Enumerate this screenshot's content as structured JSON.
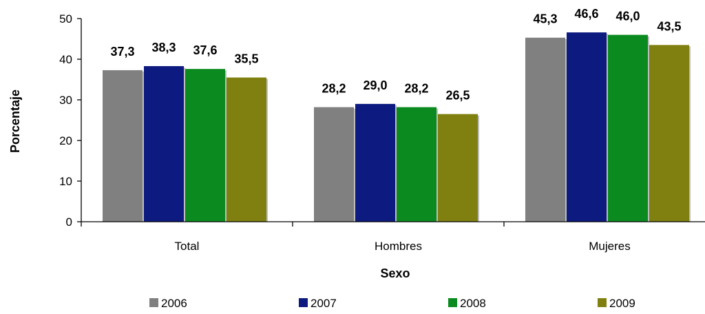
{
  "chart_data": {
    "type": "bar",
    "title": "",
    "xlabel": "Sexo",
    "ylabel": "Porcentaje",
    "ylim": [
      0,
      50
    ],
    "yticks": [
      "0",
      "10",
      "20",
      "30",
      "40",
      "50"
    ],
    "categories": [
      "Total",
      "Hombres",
      "Mujeres"
    ],
    "series": [
      {
        "name": "2006",
        "color": "#808080",
        "values": [
          37.3,
          28.2,
          45.3
        ],
        "labels": [
          "37,3",
          "28,2",
          "45,3"
        ]
      },
      {
        "name": "2007",
        "color": "#0d1a80",
        "values": [
          38.3,
          29.0,
          46.6
        ],
        "labels": [
          "38,3",
          "29,0",
          "46,6"
        ]
      },
      {
        "name": "2008",
        "color": "#0a8a1f",
        "values": [
          37.6,
          28.2,
          46.0
        ],
        "labels": [
          "37,6",
          "28,2",
          "46,0"
        ]
      },
      {
        "name": "2009",
        "color": "#808010",
        "values": [
          35.5,
          26.5,
          43.5
        ],
        "labels": [
          "35,5",
          "26,5",
          "43,5"
        ]
      }
    ],
    "grid": false,
    "legend_position": "bottom"
  }
}
